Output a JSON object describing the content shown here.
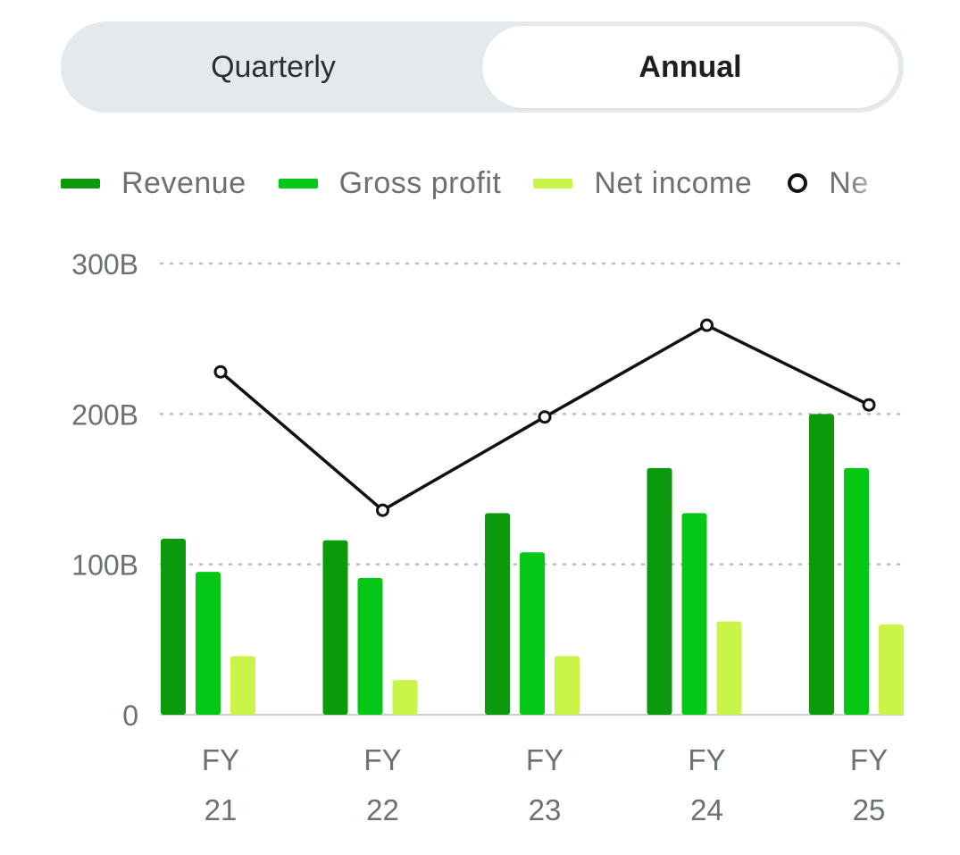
{
  "toggle": {
    "quarterly_label": "Quarterly",
    "annual_label": "Annual",
    "selected": "Annual"
  },
  "legend": {
    "items": [
      {
        "label": "Revenue",
        "color": "#0b9a0b",
        "kind": "bar"
      },
      {
        "label": "Gross profit",
        "color": "#05c715",
        "kind": "bar"
      },
      {
        "label": "Net income",
        "color": "#c8f548",
        "kind": "bar"
      },
      {
        "label": "Ne",
        "color": "#111111",
        "kind": "line"
      }
    ]
  },
  "chart_data": {
    "type": "bar",
    "categories": [
      {
        "line1": "FY",
        "line2": "21"
      },
      {
        "line1": "FY",
        "line2": "22"
      },
      {
        "line1": "FY",
        "line2": "23"
      },
      {
        "line1": "FY",
        "line2": "24"
      },
      {
        "line1": "FY",
        "line2": "25"
      }
    ],
    "series": [
      {
        "name": "Revenue",
        "color": "#0b9a0b",
        "values": [
          117,
          116,
          134,
          164,
          200
        ]
      },
      {
        "name": "Gross profit",
        "color": "#05c715",
        "values": [
          95,
          91,
          108,
          134,
          164
        ]
      },
      {
        "name": "Net income",
        "color": "#c8f548",
        "values": [
          39,
          23,
          39,
          62,
          60
        ]
      }
    ],
    "line_series": {
      "values": [
        228,
        136,
        198,
        259,
        206
      ],
      "color": "#111111"
    },
    "y_ticks": [
      "0",
      "100B",
      "200B",
      "300B"
    ],
    "ylim": [
      0,
      300
    ],
    "grid": true
  }
}
